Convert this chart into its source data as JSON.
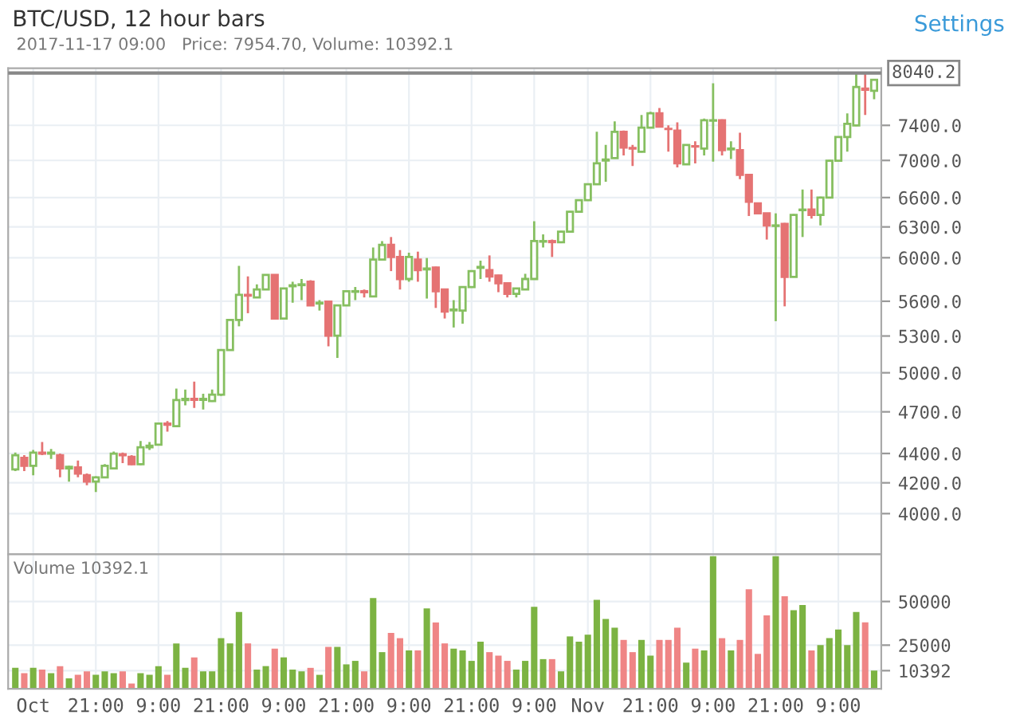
{
  "chart_data": [
    {
      "type": "candlestick",
      "title": "BTC/USD, 12 hour bars",
      "subtitle": "2017-11-17 09:00   Price: 7954.70, Volume: 10392.1",
      "annotations": [
        "Settings"
      ],
      "categories": [
        null,
        null,
        null,
        null,
        null,
        null,
        null,
        null,
        null,
        null,
        null,
        null,
        null,
        null,
        null,
        null,
        null,
        null,
        null,
        null,
        null,
        null,
        null,
        null,
        null,
        null,
        null,
        null,
        null,
        null,
        null,
        null,
        null,
        null,
        null,
        null,
        null,
        null,
        null,
        null,
        null,
        null,
        null,
        null,
        null,
        null,
        null,
        null,
        null,
        null,
        null,
        null,
        null,
        null,
        null,
        null,
        null,
        null,
        null,
        null,
        null,
        null,
        null,
        null,
        null,
        null,
        null,
        null,
        null,
        null,
        null,
        null,
        null,
        null,
        null,
        null,
        null,
        null,
        null,
        null,
        null,
        null,
        null,
        null,
        null,
        null,
        null,
        null,
        null,
        null,
        null,
        null,
        null,
        null,
        null,
        null,
        null
      ],
      "ohlc": [
        [
          4290,
          4406,
          4279,
          4388
        ],
        [
          4369,
          4388,
          4279,
          4315
        ],
        [
          4315,
          4424,
          4251,
          4406
        ],
        [
          4406,
          4480,
          4388,
          4399
        ],
        [
          4399,
          4432,
          4362,
          4406
        ],
        [
          4388,
          4399,
          4237,
          4297
        ],
        [
          4297,
          4315,
          4208,
          4308
        ],
        [
          4304,
          4351,
          4237,
          4262
        ],
        [
          4251,
          4262,
          4184,
          4208
        ],
        [
          4208,
          4244,
          4139,
          4237
        ],
        [
          4237,
          4326,
          4230,
          4315
        ],
        [
          4297,
          4413,
          4290,
          4399
        ],
        [
          4395,
          4406,
          4333,
          4388
        ],
        [
          4377,
          4388,
          4320,
          4326
        ],
        [
          4326,
          4488,
          4320,
          4443
        ],
        [
          4443,
          4480,
          4424,
          4454
        ],
        [
          4462,
          4620,
          4455,
          4613
        ],
        [
          4613,
          4632,
          4555,
          4605
        ],
        [
          4594,
          4877,
          4590,
          4789
        ],
        [
          4789,
          4869,
          4749,
          4797
        ],
        [
          4797,
          4931,
          4729,
          4790
        ],
        [
          4790,
          4837,
          4718,
          4797
        ],
        [
          4781,
          4869,
          4775,
          4829
        ],
        [
          4829,
          5190,
          4820,
          5184
        ],
        [
          5184,
          5440,
          5180,
          5436
        ],
        [
          5436,
          5923,
          5382,
          5657
        ],
        [
          5657,
          5825,
          5495,
          5650
        ],
        [
          5634,
          5752,
          5630,
          5705
        ],
        [
          5705,
          5845,
          5700,
          5839
        ],
        [
          5839,
          5845,
          5440,
          5449
        ],
        [
          5449,
          5720,
          5440,
          5714
        ],
        [
          5735,
          5776,
          5587,
          5743
        ],
        [
          5745,
          5801,
          5610,
          5752
        ],
        [
          5776,
          5790,
          5560,
          5564
        ],
        [
          5580,
          5610,
          5518,
          5587
        ],
        [
          5596,
          5600,
          5214,
          5302
        ],
        [
          5302,
          5570,
          5119,
          5564
        ],
        [
          5564,
          5695,
          5560,
          5690
        ],
        [
          5685,
          5728,
          5610,
          5690
        ],
        [
          5690,
          5705,
          5634,
          5681
        ],
        [
          5643,
          6098,
          5640,
          5982
        ],
        [
          5982,
          6160,
          5980,
          6123
        ],
        [
          6123,
          6200,
          5874,
          6007
        ],
        [
          6007,
          6073,
          5705,
          5801
        ],
        [
          5801,
          6048,
          5776,
          6007
        ],
        [
          5982,
          6058,
          5776,
          5883
        ],
        [
          5890,
          5997,
          5624,
          5898
        ],
        [
          5908,
          5915,
          5541,
          5690
        ],
        [
          5705,
          5710,
          5449,
          5509
        ],
        [
          5520,
          5610,
          5372,
          5527
        ],
        [
          5518,
          5735,
          5404,
          5728
        ],
        [
          5728,
          5880,
          5725,
          5874
        ],
        [
          5905,
          5972,
          5801,
          5913
        ],
        [
          5883,
          6022,
          5776,
          5825
        ],
        [
          5834,
          5840,
          5681,
          5762
        ],
        [
          5762,
          5765,
          5634,
          5667
        ],
        [
          5667,
          5720,
          5634,
          5714
        ],
        [
          5705,
          5849,
          5700,
          5801
        ],
        [
          5801,
          6357,
          5795,
          6160
        ],
        [
          6155,
          6226,
          6098,
          6160
        ],
        [
          6160,
          6175,
          6007,
          6150
        ],
        [
          6149,
          6260,
          6140,
          6252
        ],
        [
          6252,
          6460,
          6245,
          6454
        ],
        [
          6454,
          6580,
          6450,
          6573
        ],
        [
          6573,
          6745,
          6570,
          6740
        ],
        [
          6740,
          7325,
          6735,
          6968
        ],
        [
          7000,
          7174,
          6767,
          7009
        ],
        [
          7026,
          7448,
          7020,
          7325
        ],
        [
          7325,
          7340,
          7056,
          7144
        ],
        [
          7140,
          7174,
          6939,
          7132
        ],
        [
          7097,
          7523,
          7090,
          7374
        ],
        [
          7374,
          7560,
          7370,
          7542
        ],
        [
          7542,
          7605,
          7380,
          7386
        ],
        [
          7360,
          7399,
          7097,
          7356
        ],
        [
          7338,
          7436,
          6922,
          6968
        ],
        [
          6957,
          7180,
          6950,
          7174
        ],
        [
          7160,
          7216,
          6968,
          7156
        ],
        [
          7132,
          7479,
          7056,
          7460
        ],
        [
          7455,
          7909,
          6986,
          7460
        ],
        [
          7460,
          7470,
          7056,
          7114
        ],
        [
          7125,
          7216,
          7015,
          7132
        ],
        [
          7114,
          7313,
          6796,
          6842
        ],
        [
          6842,
          6850,
          6410,
          6557
        ],
        [
          6540,
          6545,
          6430,
          6437
        ],
        [
          6437,
          6440,
          6175,
          6315
        ],
        [
          6310,
          6437,
          5426,
          6315
        ],
        [
          6331,
          6340,
          5555,
          5820
        ],
        [
          5820,
          6430,
          5815,
          6421
        ],
        [
          6470,
          6684,
          6200,
          6475
        ],
        [
          6475,
          6684,
          6384,
          6421
        ],
        [
          6421,
          6610,
          6315,
          6600
        ],
        [
          6600,
          7005,
          6595,
          6997
        ],
        [
          6997,
          7270,
          6990,
          7265
        ],
        [
          7265,
          7542,
          7097,
          7417
        ],
        [
          7399,
          8029,
          7390,
          7863
        ],
        [
          7843,
          8029,
          7523,
          7830
        ],
        [
          7817,
          7962,
          7713,
          7954.7
        ]
      ],
      "colors": [
        "#86bf60",
        "#e57373",
        "#86bf60",
        "#e57373",
        "#86bf60",
        "#e57373",
        "#86bf60",
        "#e57373",
        "#e57373",
        "#86bf60",
        "#86bf60",
        "#86bf60",
        "#e57373",
        "#e57373",
        "#86bf60",
        "#86bf60",
        "#86bf60",
        "#e57373",
        "#86bf60",
        "#86bf60",
        "#e57373",
        "#86bf60",
        "#86bf60",
        "#86bf60",
        "#86bf60",
        "#86bf60",
        "#e57373",
        "#86bf60",
        "#86bf60",
        "#e57373",
        "#86bf60",
        "#86bf60",
        "#86bf60",
        "#e57373",
        "#86bf60",
        "#e57373",
        "#86bf60",
        "#86bf60",
        "#86bf60",
        "#e57373",
        "#86bf60",
        "#86bf60",
        "#e57373",
        "#e57373",
        "#86bf60",
        "#e57373",
        "#86bf60",
        "#e57373",
        "#e57373",
        "#86bf60",
        "#86bf60",
        "#86bf60",
        "#86bf60",
        "#e57373",
        "#e57373",
        "#e57373",
        "#86bf60",
        "#86bf60",
        "#86bf60",
        "#86bf60",
        "#e57373",
        "#86bf60",
        "#86bf60",
        "#86bf60",
        "#86bf60",
        "#86bf60",
        "#86bf60",
        "#86bf60",
        "#e57373",
        "#e57373",
        "#86bf60",
        "#86bf60",
        "#e57373",
        "#e57373",
        "#e57373",
        "#86bf60",
        "#e57373",
        "#86bf60",
        "#86bf60",
        "#e57373",
        "#86bf60",
        "#e57373",
        "#e57373",
        "#e57373",
        "#e57373",
        "#86bf60",
        "#e57373",
        "#86bf60",
        "#86bf60",
        "#e57373",
        "#86bf60",
        "#86bf60",
        "#86bf60",
        "#86bf60",
        "#86bf60",
        "#e57373",
        "#86bf60"
      ],
      "log": true,
      "ylim": [
        3750,
        8100
      ],
      "yticks": [
        {
          "value": 4000,
          "label": "4000.0"
        },
        {
          "value": 4200,
          "label": "4200.0"
        },
        {
          "value": 4400,
          "label": "4400.0"
        },
        {
          "value": 4700,
          "label": "4700.0"
        },
        {
          "value": 5000,
          "label": "5000.0"
        },
        {
          "value": 5300,
          "label": "5300.0"
        },
        {
          "value": 5600,
          "label": "5600.0"
        },
        {
          "value": 6000,
          "label": "6000.0"
        },
        {
          "value": 6300,
          "label": "6300.0"
        },
        {
          "value": 6600,
          "label": "6600.0"
        },
        {
          "value": 7000,
          "label": "7000.0"
        },
        {
          "value": 7400,
          "label": "7400.0"
        }
      ],
      "ref_lines": [
        {
          "axis": "y",
          "value": 8040.2,
          "label": "8040.2",
          "color": "#888888"
        }
      ],
      "grid": true,
      "tick_labels": "y"
    },
    {
      "type": "bar",
      "title": "Volume 10392.1",
      "categories": [
        null,
        null,
        "Oct",
        null,
        null,
        null,
        null,
        null,
        null,
        "21:00",
        null,
        null,
        null,
        null,
        null,
        null,
        "9:00",
        null,
        null,
        null,
        null,
        null,
        null,
        "21:00",
        null,
        null,
        null,
        null,
        null,
        null,
        "9:00",
        null,
        null,
        null,
        null,
        null,
        null,
        "21:00",
        null,
        null,
        null,
        null,
        null,
        null,
        "9:00",
        null,
        null,
        null,
        null,
        null,
        null,
        "21:00",
        null,
        null,
        null,
        null,
        null,
        null,
        "9:00",
        null,
        null,
        null,
        null,
        null,
        "Nov",
        null,
        null,
        null,
        null,
        null,
        null,
        "21:00",
        null,
        null,
        null,
        null,
        null,
        null,
        "9:00",
        null,
        null,
        null,
        null,
        null,
        null,
        "21:00",
        null,
        null,
        null,
        null,
        null,
        null,
        "9:00",
        null,
        null,
        null,
        null
      ],
      "values": [
        12000,
        9000,
        12000,
        11000,
        9000,
        13000,
        6000,
        8000,
        10000,
        8000,
        10000,
        9000,
        10000,
        3000,
        9000,
        8000,
        13000,
        8000,
        26000,
        12000,
        18000,
        10000,
        10000,
        29000,
        26000,
        44000,
        26000,
        11000,
        13000,
        23000,
        18000,
        11000,
        10000,
        12000,
        8000,
        24000,
        24000,
        14000,
        16000,
        10000,
        52000,
        21000,
        32000,
        29000,
        22000,
        22000,
        46000,
        38000,
        26000,
        23000,
        22000,
        16000,
        27000,
        21000,
        19000,
        16000,
        11000,
        16000,
        47000,
        17000,
        17000,
        10000,
        30000,
        27000,
        31000,
        51000,
        40000,
        35000,
        28000,
        21000,
        28000,
        19000,
        28000,
        28000,
        35000,
        15000,
        23000,
        22000,
        76000,
        29000,
        22000,
        28000,
        57000,
        20000,
        42000,
        76000,
        53000,
        45000,
        48000,
        22000,
        25000,
        29000,
        34000,
        25000,
        44000,
        38000,
        10392.1
      ],
      "colors": [
        "#7cb342",
        "#ef8585",
        "#7cb342",
        "#ef8585",
        "#7cb342",
        "#ef8585",
        "#7cb342",
        "#ef8585",
        "#ef8585",
        "#7cb342",
        "#7cb342",
        "#7cb342",
        "#ef8585",
        "#ef8585",
        "#7cb342",
        "#7cb342",
        "#7cb342",
        "#ef8585",
        "#7cb342",
        "#7cb342",
        "#ef8585",
        "#7cb342",
        "#7cb342",
        "#7cb342",
        "#7cb342",
        "#7cb342",
        "#ef8585",
        "#7cb342",
        "#7cb342",
        "#ef8585",
        "#7cb342",
        "#7cb342",
        "#7cb342",
        "#ef8585",
        "#7cb342",
        "#ef8585",
        "#7cb342",
        "#7cb342",
        "#7cb342",
        "#ef8585",
        "#7cb342",
        "#7cb342",
        "#ef8585",
        "#ef8585",
        "#7cb342",
        "#ef8585",
        "#7cb342",
        "#ef8585",
        "#ef8585",
        "#7cb342",
        "#7cb342",
        "#7cb342",
        "#7cb342",
        "#ef8585",
        "#ef8585",
        "#ef8585",
        "#7cb342",
        "#7cb342",
        "#7cb342",
        "#7cb342",
        "#ef8585",
        "#7cb342",
        "#7cb342",
        "#7cb342",
        "#7cb342",
        "#7cb342",
        "#7cb342",
        "#7cb342",
        "#ef8585",
        "#ef8585",
        "#7cb342",
        "#7cb342",
        "#ef8585",
        "#ef8585",
        "#ef8585",
        "#7cb342",
        "#ef8585",
        "#7cb342",
        "#7cb342",
        "#ef8585",
        "#7cb342",
        "#ef8585",
        "#ef8585",
        "#ef8585",
        "#ef8585",
        "#7cb342",
        "#ef8585",
        "#7cb342",
        "#7cb342",
        "#ef8585",
        "#7cb342",
        "#7cb342",
        "#7cb342",
        "#7cb342",
        "#7cb342",
        "#ef8585",
        "#7cb342"
      ],
      "ylim": [
        0,
        77000
      ],
      "yticks": [
        {
          "value": 10392.1,
          "label": "10392"
        },
        25000,
        50000
      ],
      "grid": true
    }
  ]
}
